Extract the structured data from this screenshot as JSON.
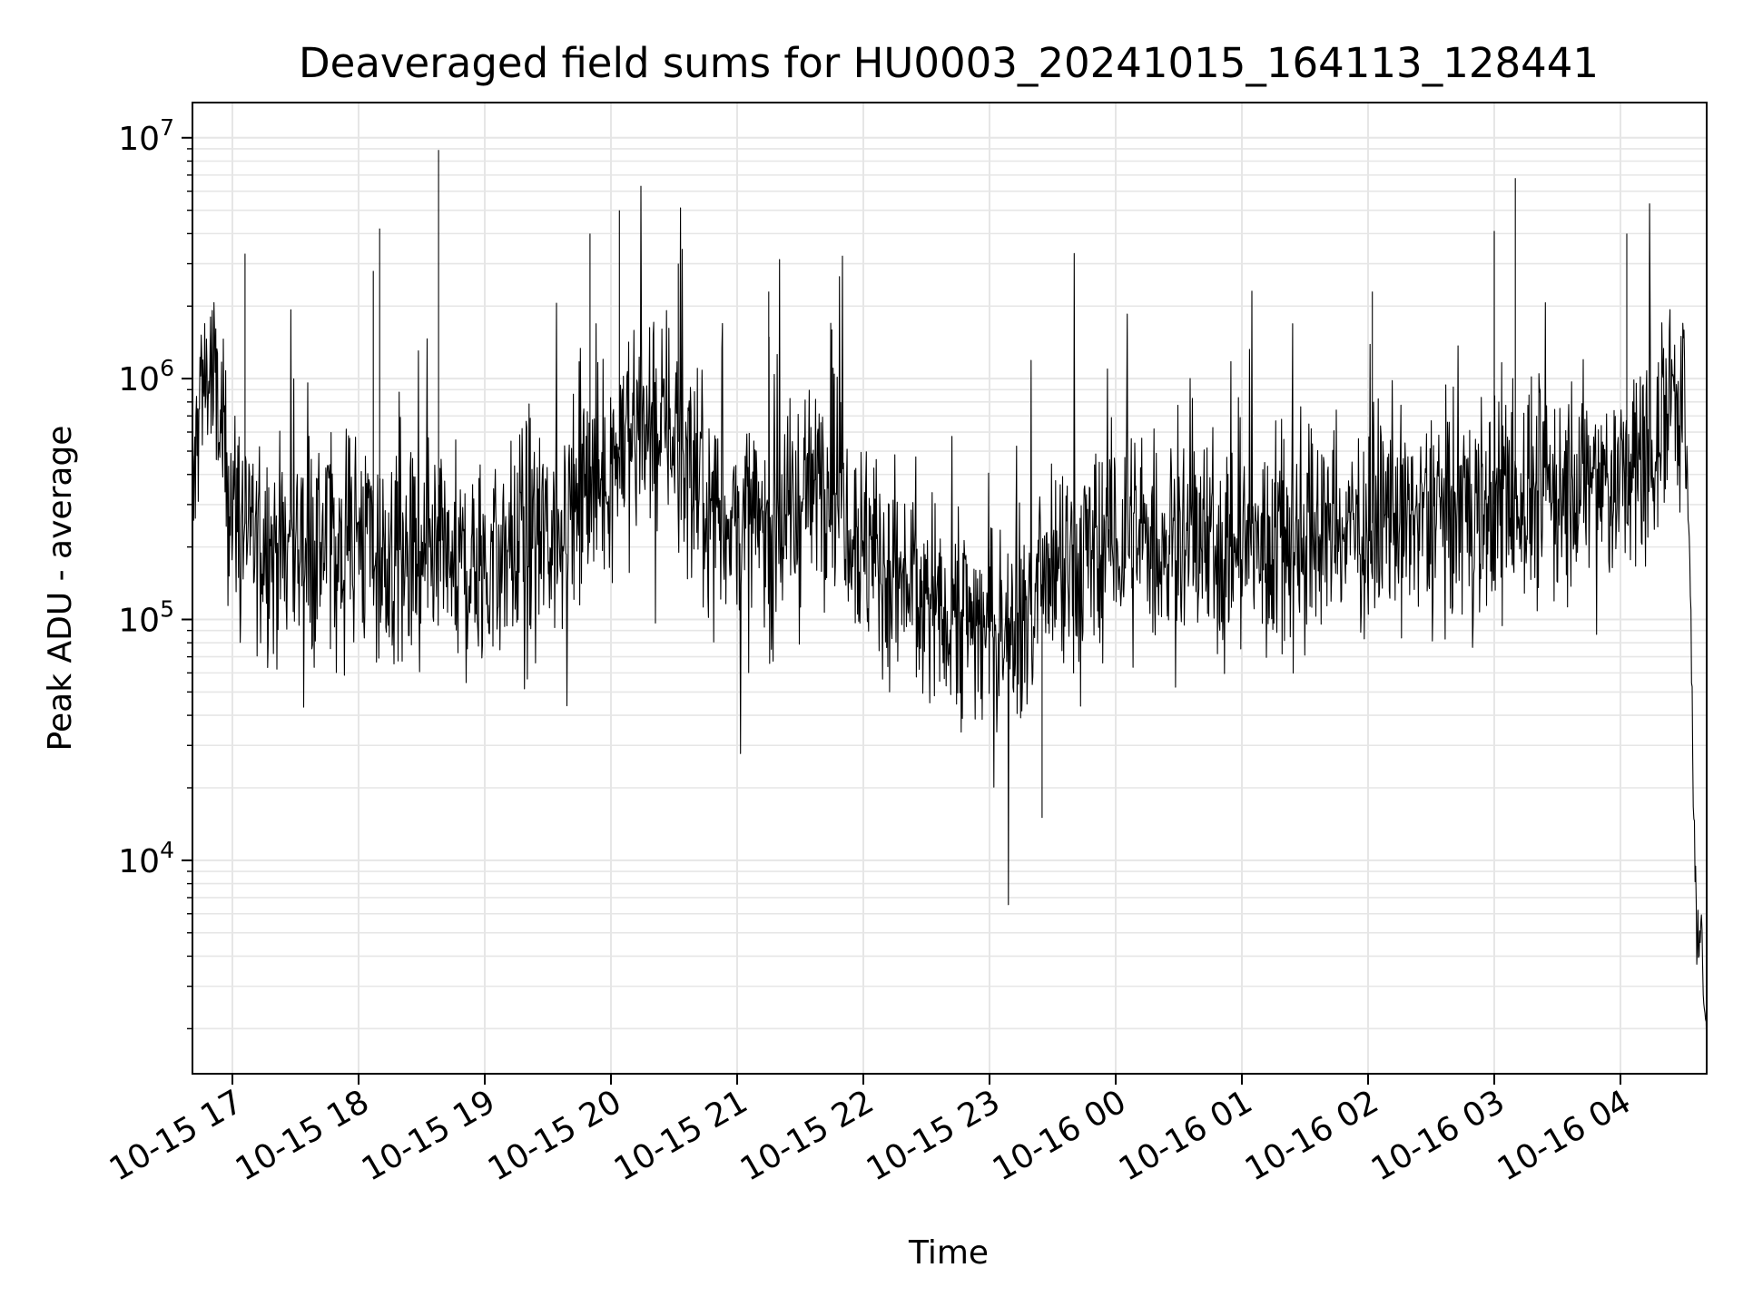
{
  "chart_data": {
    "type": "line",
    "title": "Deaveraged field sums for HU0003_20241015_164113_128441",
    "xlabel": "Time",
    "ylabel": "Peak ADU - average",
    "y_scale": "log",
    "ylim": [
      1300,
      14000000
    ],
    "xlim": [
      "2024-10-15 16:41",
      "2024-10-16 04:41"
    ],
    "grid": true,
    "line_color": "#000000",
    "grid_color": "#e6e6e6",
    "x_ticks": [
      "10-15 17",
      "10-15 18",
      "10-15 19",
      "10-15 20",
      "10-15 21",
      "10-15 22",
      "10-15 23",
      "10-16 00",
      "10-16 01",
      "10-16 02",
      "10-16 03",
      "10-16 04"
    ],
    "y_ticks": [
      {
        "base": "10",
        "exp": "4"
      },
      {
        "base": "10",
        "exp": "5"
      },
      {
        "base": "10",
        "exp": "6"
      },
      {
        "base": "10",
        "exp": "7"
      }
    ],
    "series": [
      {
        "x": [
          "2024-10-15 16:41",
          "2024-10-15 16:44",
          "2024-10-15 16:47",
          "2024-10-15 16:50",
          "2024-10-15 16:53",
          "2024-10-15 17:00",
          "2024-10-15 17:10",
          "2024-10-15 17:20",
          "2024-10-15 17:30",
          "2024-10-15 17:40",
          "2024-10-15 17:50",
          "2024-10-15 18:00",
          "2024-10-15 18:15",
          "2024-10-15 18:30",
          "2024-10-15 18:45",
          "2024-10-15 19:00",
          "2024-10-15 19:15",
          "2024-10-15 19:30",
          "2024-10-15 19:45",
          "2024-10-15 20:00",
          "2024-10-15 20:15",
          "2024-10-15 20:30",
          "2024-10-15 20:45",
          "2024-10-15 21:00",
          "2024-10-15 21:15",
          "2024-10-15 21:30",
          "2024-10-15 21:45",
          "2024-10-15 22:00",
          "2024-10-15 22:15",
          "2024-10-15 22:30",
          "2024-10-15 22:45",
          "2024-10-15 23:00",
          "2024-10-15 23:15",
          "2024-10-15 23:30",
          "2024-10-15 23:45",
          "2024-10-16 00:00",
          "2024-10-16 00:30",
          "2024-10-16 01:00",
          "2024-10-16 01:30",
          "2024-10-16 02:00",
          "2024-10-16 02:30",
          "2024-10-16 03:00",
          "2024-10-16 03:30",
          "2024-10-16 04:00",
          "2024-10-16 04:10",
          "2024-10-16 04:20",
          "2024-10-16 04:25",
          "2024-10-16 04:30",
          "2024-10-16 04:33",
          "2024-10-16 04:36",
          "2024-10-16 04:39",
          "2024-10-16 04:41"
        ],
        "y": [
          250000,
          800000,
          1100000,
          1000000,
          700000,
          300000,
          220000,
          200000,
          210000,
          200000,
          220000,
          240000,
          160000,
          150000,
          170000,
          160000,
          210000,
          220000,
          320000,
          450000,
          700000,
          600000,
          300000,
          250000,
          230000,
          300000,
          480000,
          200000,
          150000,
          120000,
          110000,
          90000,
          100000,
          140000,
          170000,
          210000,
          210000,
          200000,
          220000,
          250000,
          270000,
          300000,
          350000,
          380000,
          420000,
          700000,
          1050000,
          900000,
          150000,
          5000,
          3500,
          2400
        ],
        "visual_noise": "dense high-frequency fluctuation, approx. 3x above and below the local level, with occasional spikes"
      }
    ],
    "notable_spikes": [
      {
        "x": "2024-10-15 17:06",
        "y": 3300000
      },
      {
        "x": "2024-10-15 18:07",
        "y": 2800000
      },
      {
        "x": "2024-10-15 18:10",
        "y": 4200000
      },
      {
        "x": "2024-10-15 18:38",
        "y": 8900000
      },
      {
        "x": "2024-10-15 19:50",
        "y": 4000000
      },
      {
        "x": "2024-10-15 20:04",
        "y": 5000000
      },
      {
        "x": "2024-10-15 20:32",
        "y": 3000000
      },
      {
        "x": "2024-10-15 21:15",
        "y": 2300000
      },
      {
        "x": "2024-10-15 21:45",
        "y": 1600000
      },
      {
        "x": "2024-10-15 23:25",
        "y": 15000
      },
      {
        "x": "2024-10-16 02:02",
        "y": 2300000
      },
      {
        "x": "2024-10-16 03:00",
        "y": 4100000
      },
      {
        "x": "2024-10-16 03:10",
        "y": 6800000
      },
      {
        "x": "2024-10-16 04:03",
        "y": 4000000
      }
    ]
  }
}
